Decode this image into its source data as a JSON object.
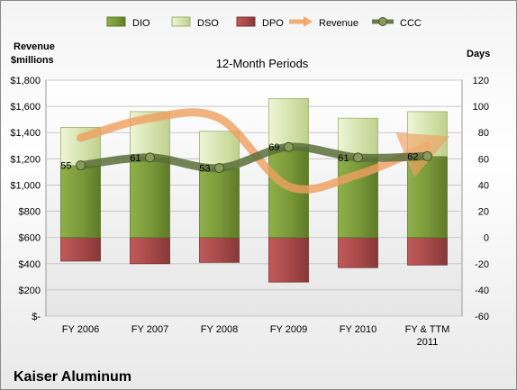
{
  "chart_data": {
    "type": "bar",
    "subtitle": "12-Month Periods",
    "company": "Kaiser Aluminum",
    "left_axis_label": [
      "Revenue",
      "$millions"
    ],
    "right_axis_label": "Days",
    "left_ylim": [
      0,
      1800
    ],
    "left_ticks": [
      "$-",
      "$200",
      "$400",
      "$600",
      "$800",
      "$1,000",
      "$1,200",
      "$1,400",
      "$1,600",
      "$1,800"
    ],
    "right_ylim": [
      -60,
      120
    ],
    "right_ticks": [
      "-60",
      "-40",
      "-20",
      "0",
      "20",
      "40",
      "60",
      "80",
      "100",
      "120"
    ],
    "categories": [
      [
        "FY 2006"
      ],
      [
        "FY 2007"
      ],
      [
        "FY 2008"
      ],
      [
        "FY 2009"
      ],
      [
        "FY 2010"
      ],
      [
        "FY & TTM",
        "2011"
      ]
    ],
    "legend_placement": "top",
    "legend": [
      "DIO",
      "DSO",
      "DPO",
      "Revenue",
      "CCC"
    ],
    "series": [
      {
        "name": "DIO",
        "axis": "days",
        "values": [
          55,
          61,
          53,
          69,
          61,
          62
        ],
        "color": "#7a9a3a"
      },
      {
        "name": "DSO",
        "axis": "days",
        "values": [
          29,
          35,
          28,
          37,
          30,
          34
        ],
        "color": "#d7e4b0"
      },
      {
        "name": "DPO",
        "axis": "days",
        "values": [
          18,
          20,
          19,
          34,
          23,
          21
        ],
        "color": "#a84a4a"
      },
      {
        "name": "Revenue",
        "axis": "revenue",
        "values": [
          1360,
          1510,
          1510,
          990,
          1080,
          1300
        ],
        "color": "#f0a060"
      },
      {
        "name": "CCC",
        "axis": "days",
        "values": [
          55,
          61,
          53,
          69,
          61,
          62
        ],
        "color": "#5a6e3a"
      }
    ],
    "ccc_labels": [
      "55",
      "61",
      "53",
      "69",
      "61",
      "62"
    ]
  }
}
